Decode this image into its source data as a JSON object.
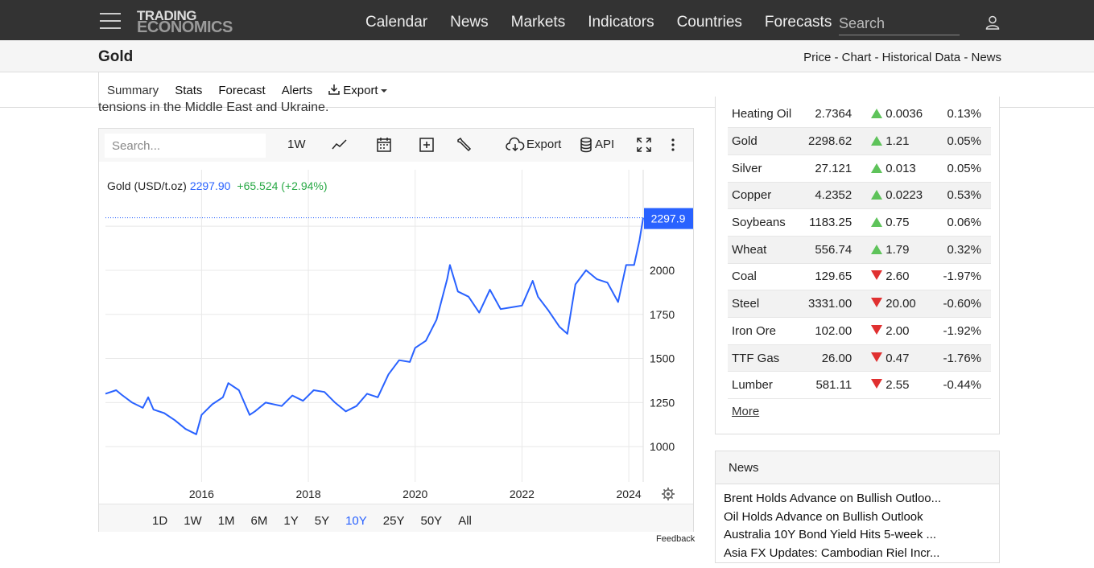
{
  "nav": {
    "logo_line1": "TRADING",
    "logo_line2": "ECONOMICS",
    "links": [
      "Calendar",
      "News",
      "Markets",
      "Indicators",
      "Countries",
      "Forecasts"
    ],
    "search_placeholder": "Search"
  },
  "titlebar": {
    "title": "Gold",
    "links": "Price - Chart - Historical Data - News"
  },
  "subnav": {
    "tabs": [
      "Summary",
      "Stats",
      "Forecast",
      "Alerts"
    ],
    "export_label": "Export"
  },
  "intro_cut_text": "tensions in the Middle East and Ukraine.",
  "chart_toolbar": {
    "search_placeholder": "Search...",
    "interval": "1W",
    "export_label": "Export",
    "api_label": "API"
  },
  "chart_legend": {
    "name": "Gold (USD/t.oz)",
    "last": "2297.90",
    "change": "+65.524 (+2.94%)"
  },
  "chart_data": {
    "type": "line",
    "title": "Gold (USD/t.oz)",
    "series": [
      {
        "name": "Gold (USD/t.oz)",
        "color": "#2962ff",
        "x": [
          2014.2,
          2014.4,
          2014.5,
          2014.7,
          2014.9,
          2015.0,
          2015.1,
          2015.3,
          2015.5,
          2015.7,
          2015.9,
          2016.0,
          2016.2,
          2016.4,
          2016.5,
          2016.7,
          2016.9,
          2017.0,
          2017.2,
          2017.5,
          2017.7,
          2017.9,
          2018.1,
          2018.3,
          2018.5,
          2018.7,
          2018.9,
          2019.1,
          2019.3,
          2019.5,
          2019.7,
          2019.9,
          2020.0,
          2020.2,
          2020.4,
          2020.6,
          2020.65,
          2020.8,
          2021.0,
          2021.2,
          2021.4,
          2021.6,
          2021.8,
          2022.0,
          2022.2,
          2022.3,
          2022.5,
          2022.7,
          2022.85,
          2023.0,
          2023.2,
          2023.4,
          2023.6,
          2023.8,
          2023.95,
          2024.1,
          2024.2,
          2024.27
        ],
        "values": [
          1300,
          1320,
          1295,
          1250,
          1220,
          1280,
          1210,
          1190,
          1150,
          1100,
          1070,
          1180,
          1240,
          1280,
          1360,
          1320,
          1180,
          1200,
          1250,
          1230,
          1290,
          1260,
          1320,
          1310,
          1250,
          1200,
          1230,
          1300,
          1280,
          1410,
          1490,
          1480,
          1560,
          1600,
          1720,
          1950,
          2030,
          1880,
          1850,
          1760,
          1890,
          1780,
          1790,
          1800,
          1940,
          1850,
          1770,
          1680,
          1640,
          1920,
          2000,
          1950,
          1930,
          1820,
          2030,
          2030,
          2170,
          2297.9
        ]
      }
    ],
    "xlabel": "",
    "ylabel": "",
    "xticks": [
      "2016",
      "2018",
      "2020",
      "2022",
      "2024"
    ],
    "yticks": [
      1000,
      1250,
      1500,
      1750,
      2000
    ],
    "last_label": "2297.9",
    "xlim": [
      2014.2,
      2024.27
    ],
    "ylim": [
      800,
      2570
    ],
    "grid": true
  },
  "chart_ranges": {
    "options": [
      "1D",
      "1W",
      "1M",
      "6M",
      "1Y",
      "5Y",
      "10Y",
      "25Y",
      "50Y",
      "All"
    ],
    "active": "10Y"
  },
  "feedback_label": "Feedback",
  "commodities": [
    {
      "name": "Heating Oil",
      "price": "2.7364",
      "dir": "up",
      "change": "0.0036",
      "pct": "0.13%"
    },
    {
      "name": "Gold",
      "price": "2298.62",
      "dir": "up",
      "change": "1.21",
      "pct": "0.05%"
    },
    {
      "name": "Silver",
      "price": "27.121",
      "dir": "up",
      "change": "0.013",
      "pct": "0.05%"
    },
    {
      "name": "Copper",
      "price": "4.2352",
      "dir": "up",
      "change": "0.0223",
      "pct": "0.53%"
    },
    {
      "name": "Soybeans",
      "price": "1183.25",
      "dir": "up",
      "change": "0.75",
      "pct": "0.06%"
    },
    {
      "name": "Wheat",
      "price": "556.74",
      "dir": "up",
      "change": "1.79",
      "pct": "0.32%"
    },
    {
      "name": "Coal",
      "price": "129.65",
      "dir": "down",
      "change": "2.60",
      "pct": "-1.97%"
    },
    {
      "name": "Steel",
      "price": "3331.00",
      "dir": "down",
      "change": "20.00",
      "pct": "-0.60%"
    },
    {
      "name": "Iron Ore",
      "price": "102.00",
      "dir": "down",
      "change": "2.00",
      "pct": "-1.92%"
    },
    {
      "name": "TTF Gas",
      "price": "26.00",
      "dir": "down",
      "change": "0.47",
      "pct": "-1.76%"
    },
    {
      "name": "Lumber",
      "price": "581.11",
      "dir": "down",
      "change": "2.55",
      "pct": "-0.44%"
    }
  ],
  "more_label": "More",
  "news": {
    "heading": "News",
    "items": [
      "Brent Holds Advance on Bullish Outloo...",
      "Oil Holds Advance on Bullish Outlook",
      "Australia 10Y Bond Yield Hits 5-week ...",
      "Asia FX Updates: Cambodian Riel Incr..."
    ]
  }
}
